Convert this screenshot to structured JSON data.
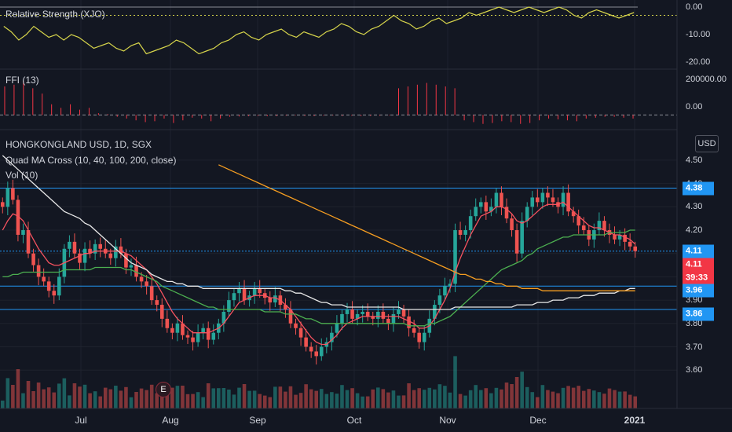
{
  "chart_data": [
    {
      "type": "line",
      "title": "Relative Strength (XJO)",
      "y_ticks": [
        "0.00",
        "-10.00",
        "-20.00"
      ],
      "ylim": [
        -20,
        0
      ],
      "series": [
        {
          "color": "#d6d44b",
          "values": [
            -7,
            -9,
            -12,
            -10,
            -7,
            -9,
            -11,
            -10,
            -12,
            -10,
            -11,
            -13,
            -15,
            -14,
            -13,
            -15,
            -16,
            -14,
            -13,
            -17,
            -16,
            -15,
            -14,
            -12,
            -13,
            -15,
            -17,
            -16,
            -15,
            -13,
            -12,
            -10,
            -9,
            -11,
            -12,
            -10,
            -9,
            -8,
            -10,
            -11,
            -9,
            -10,
            -11,
            -9,
            -8,
            -6,
            -7,
            -9,
            -10,
            -8,
            -7,
            -5,
            -3,
            -5,
            -6,
            -8,
            -7,
            -5,
            -4,
            -6,
            -5,
            -4,
            -2,
            -3,
            -2,
            -1,
            0,
            -1,
            -2,
            -1,
            0,
            -1,
            -2,
            -1,
            0,
            -1,
            -3,
            -4,
            -2,
            -1,
            -2,
            -3,
            -4,
            -3,
            -2
          ]
        }
      ]
    },
    {
      "type": "bar",
      "title": "FFI (13)",
      "y_ticks": [
        "200000.00",
        "0.00"
      ],
      "ylim": [
        -60000,
        200000
      ],
      "values": [
        160000,
        170000,
        190000,
        150000,
        120000,
        60000,
        40000,
        60000,
        30000,
        40000,
        10000,
        5000,
        -10000,
        -20000,
        -30000,
        -40000,
        -35000,
        -20000,
        -45000,
        -30000,
        -15000,
        -20000,
        -35000,
        -20000,
        -10000,
        -8000,
        -6000,
        -5000,
        -7000,
        -6000,
        -4000,
        -3000,
        -5000,
        -6000,
        -4000,
        -3000,
        -5000,
        -4000,
        -6000,
        -5000,
        -4000,
        -3000,
        150000,
        160000,
        170000,
        180000,
        170000,
        160000,
        150000,
        -30000,
        -40000,
        -50000,
        -45000,
        -35000,
        -40000,
        -50000,
        -45000,
        -30000,
        -20000,
        -25000,
        -30000,
        -35000,
        -20000,
        -15000,
        -10000,
        -10000,
        -15000,
        -20000
      ]
    },
    {
      "type": "candlestick",
      "title": "HONGKONGLAND USD, 1D, SGX",
      "indicator": "Quad MA Cross (10, 40, 100, 200, close)",
      "volume_label": "Vol (10)",
      "currency": "USD",
      "ylim": [
        3.53,
        4.53
      ],
      "y_ticks": [
        "4.50",
        "4.40",
        "4.30",
        "4.20",
        "4.10",
        "4.00",
        "3.90",
        "3.80",
        "3.70",
        "3.60"
      ],
      "x_ticks": [
        "Jul",
        "Aug",
        "Sep",
        "Oct",
        "Nov",
        "Dec",
        "2021"
      ],
      "closes": [
        4.3,
        4.38,
        4.33,
        4.18,
        4.2,
        4.1,
        4.05,
        4.0,
        3.98,
        3.94,
        3.92,
        4.0,
        4.12,
        4.15,
        4.1,
        4.06,
        4.12,
        4.1,
        4.14,
        4.12,
        4.1,
        4.08,
        4.13,
        4.1,
        4.04,
        4.05,
        4.0,
        3.98,
        3.96,
        3.9,
        3.88,
        3.82,
        3.78,
        3.76,
        3.8,
        3.75,
        3.74,
        3.72,
        3.76,
        3.78,
        3.73,
        3.76,
        3.8,
        3.85,
        3.9,
        3.93,
        3.95,
        3.9,
        3.92,
        3.95,
        3.93,
        3.91,
        3.89,
        3.92,
        3.88,
        3.86,
        3.8,
        3.78,
        3.74,
        3.7,
        3.68,
        3.66,
        3.7,
        3.72,
        3.76,
        3.8,
        3.84,
        3.86,
        3.82,
        3.84,
        3.85,
        3.83,
        3.82,
        3.85,
        3.82,
        3.8,
        3.84,
        3.86,
        3.83,
        3.78,
        3.76,
        3.72,
        3.76,
        3.82,
        3.88,
        3.92,
        3.96,
        3.97,
        4.2,
        4.18,
        4.2,
        4.26,
        4.3,
        4.32,
        4.28,
        4.3,
        4.36,
        4.3,
        4.25,
        4.2,
        4.1,
        4.24,
        4.3,
        4.34,
        4.32,
        4.36,
        4.34,
        4.32,
        4.3,
        4.36,
        4.28,
        4.26,
        4.22,
        4.2,
        4.16,
        4.2,
        4.24,
        4.2,
        4.18,
        4.16,
        4.18,
        4.15,
        4.13,
        4.11
      ],
      "ma_series": [
        {
          "name": "10",
          "color": "#f7525f",
          "values": [
            4.2,
            4.24,
            4.27,
            4.26,
            4.24,
            4.2,
            4.16,
            4.12,
            4.09,
            4.06,
            4.05,
            4.05,
            4.06,
            4.07,
            4.08,
            4.09,
            4.1,
            4.1,
            4.11,
            4.11,
            4.11,
            4.11,
            4.11,
            4.11,
            4.1,
            4.09,
            4.07,
            4.05,
            4.03,
            4.0,
            3.97,
            3.93,
            3.89,
            3.85,
            3.82,
            3.8,
            3.78,
            3.76,
            3.76,
            3.76,
            3.76,
            3.77,
            3.78,
            3.8,
            3.83,
            3.86,
            3.89,
            3.9,
            3.91,
            3.92,
            3.92,
            3.92,
            3.91,
            3.91,
            3.9,
            3.88,
            3.86,
            3.83,
            3.8,
            3.77,
            3.74,
            3.72,
            3.71,
            3.71,
            3.73,
            3.75,
            3.78,
            3.8,
            3.81,
            3.82,
            3.83,
            3.83,
            3.83,
            3.83,
            3.83,
            3.83,
            3.83,
            3.83,
            3.82,
            3.81,
            3.8,
            3.78,
            3.78,
            3.79,
            3.82,
            3.86,
            3.9,
            3.95,
            4.02,
            4.08,
            4.13,
            4.18,
            4.22,
            4.26,
            4.27,
            4.28,
            4.3,
            4.3,
            4.29,
            4.27,
            4.24,
            4.23,
            4.24,
            4.26,
            4.28,
            4.3,
            4.31,
            4.31,
            4.31,
            4.32,
            4.3,
            4.28,
            4.26,
            4.24,
            4.22,
            4.21,
            4.21,
            4.2,
            4.19,
            4.18,
            4.18,
            4.17,
            4.16,
            4.14
          ]
        },
        {
          "name": "40",
          "color": "#4caf50",
          "values": [
            4.0,
            4.0,
            4.01,
            4.01,
            4.02,
            4.02,
            4.02,
            4.02,
            4.02,
            4.02,
            4.02,
            4.02,
            4.03,
            4.03,
            4.03,
            4.03,
            4.03,
            4.03,
            4.04,
            4.04,
            4.04,
            4.04,
            4.04,
            4.04,
            4.03,
            4.03,
            4.02,
            4.01,
            4.0,
            3.99,
            3.98,
            3.96,
            3.95,
            3.94,
            3.93,
            3.92,
            3.91,
            3.9,
            3.89,
            3.88,
            3.87,
            3.87,
            3.86,
            3.86,
            3.86,
            3.86,
            3.86,
            3.86,
            3.86,
            3.86,
            3.86,
            3.85,
            3.85,
            3.85,
            3.85,
            3.84,
            3.84,
            3.84,
            3.83,
            3.82,
            3.82,
            3.81,
            3.8,
            3.8,
            3.8,
            3.8,
            3.8,
            3.8,
            3.8,
            3.8,
            3.8,
            3.8,
            3.8,
            3.8,
            3.8,
            3.8,
            3.8,
            3.8,
            3.8,
            3.79,
            3.79,
            3.79,
            3.79,
            3.8,
            3.8,
            3.81,
            3.82,
            3.83,
            3.85,
            3.87,
            3.89,
            3.91,
            3.93,
            3.95,
            3.97,
            3.99,
            4.01,
            4.03,
            4.04,
            4.05,
            4.06,
            4.07,
            4.09,
            4.1,
            4.12,
            4.13,
            4.14,
            4.15,
            4.16,
            4.17,
            4.17,
            4.18,
            4.18,
            4.18,
            4.18,
            4.18,
            4.18,
            4.18,
            4.19,
            4.19,
            4.19,
            4.19,
            4.2,
            4.2
          ]
        },
        {
          "name": "100",
          "color": "#e8e8e8",
          "values": [
            4.52,
            4.5,
            4.48,
            4.46,
            4.44,
            4.42,
            4.4,
            4.38,
            4.36,
            4.34,
            4.32,
            4.3,
            4.28,
            4.27,
            4.26,
            4.25,
            4.23,
            4.22,
            4.2,
            4.18,
            4.16,
            4.14,
            4.12,
            4.1,
            4.08,
            4.06,
            4.05,
            4.04,
            4.03,
            4.01,
            4.0,
            3.99,
            3.98,
            3.98,
            3.97,
            3.97,
            3.96,
            3.96,
            3.96,
            3.95,
            3.95,
            3.95,
            3.95,
            3.95,
            3.95,
            3.95,
            3.95,
            3.95,
            3.95,
            3.95,
            3.95,
            3.95,
            3.95,
            3.95,
            3.95,
            3.94,
            3.94,
            3.93,
            3.93,
            3.92,
            3.91,
            3.9,
            3.89,
            3.89,
            3.88,
            3.88,
            3.88,
            3.87,
            3.87,
            3.87,
            3.87,
            3.87,
            3.87,
            3.87,
            3.87,
            3.87,
            3.87,
            3.87,
            3.86,
            3.86,
            3.86,
            3.86,
            3.86,
            3.86,
            3.86,
            3.86,
            3.86,
            3.86,
            3.87,
            3.87,
            3.87,
            3.87,
            3.87,
            3.87,
            3.87,
            3.87,
            3.87,
            3.87,
            3.87,
            3.87,
            3.88,
            3.88,
            3.88,
            3.88,
            3.89,
            3.89,
            3.89,
            3.9,
            3.9,
            3.9,
            3.91,
            3.91,
            3.91,
            3.92,
            3.92,
            3.92,
            3.93,
            3.93,
            3.93,
            3.93,
            3.94,
            3.94,
            3.95,
            3.95
          ]
        },
        {
          "name": "200",
          "color": "#f59d21",
          "values": [
            null,
            null,
            null,
            null,
            null,
            null,
            null,
            null,
            null,
            null,
            null,
            null,
            null,
            null,
            null,
            null,
            null,
            null,
            null,
            null,
            null,
            null,
            null,
            null,
            null,
            null,
            null,
            null,
            null,
            null,
            null,
            null,
            null,
            null,
            null,
            null,
            null,
            null,
            null,
            null,
            null,
            null,
            4.48,
            4.47,
            4.46,
            4.45,
            4.44,
            4.43,
            4.42,
            4.41,
            4.4,
            4.39,
            4.38,
            4.37,
            4.36,
            4.35,
            4.34,
            4.33,
            4.32,
            4.31,
            4.3,
            4.29,
            4.28,
            4.27,
            4.26,
            4.25,
            4.24,
            4.23,
            4.22,
            4.21,
            4.2,
            4.19,
            4.18,
            4.17,
            4.16,
            4.15,
            4.14,
            4.13,
            4.12,
            4.11,
            4.1,
            4.09,
            4.08,
            4.07,
            4.06,
            4.05,
            4.04,
            4.03,
            4.02,
            4.01,
            4.01,
            4.0,
            3.99,
            3.99,
            3.98,
            3.98,
            3.97,
            3.97,
            3.96,
            3.96,
            3.96,
            3.95,
            3.95,
            3.95,
            3.95,
            3.94,
            3.94,
            3.94,
            3.94,
            3.94,
            3.94,
            3.94,
            3.94,
            3.94,
            3.94,
            3.94,
            3.94,
            3.94,
            3.94,
            3.94,
            3.94,
            3.94,
            3.94,
            3.94
          ]
        }
      ],
      "horizontal_lines": [
        4.38,
        4.11,
        3.96,
        3.86
      ],
      "price_badges": [
        {
          "text": "4.38",
          "color": "#2196f3"
        },
        {
          "text": "4.11",
          "color": "#2196f3"
        },
        {
          "text": "4.11",
          "color": "#f23645"
        },
        {
          "text": "39:33",
          "color": "#f23645"
        },
        {
          "text": "3.96",
          "color": "#2196f3"
        },
        {
          "text": "3.86",
          "color": "#2196f3"
        }
      ],
      "earnings_marker": "E"
    }
  ]
}
